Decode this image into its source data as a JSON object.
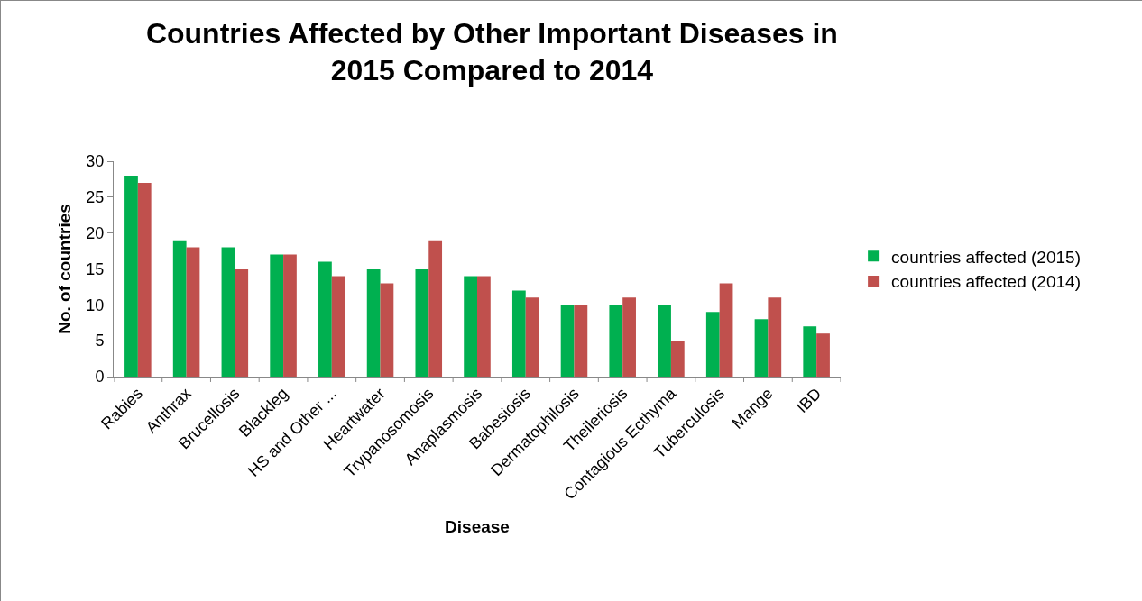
{
  "chart_data": {
    "type": "bar",
    "title": "Countries Affected by Other Important Diseases in 2015 Compared to 2014",
    "xlabel": "Disease",
    "ylabel": "No. of countries",
    "categories": [
      "Rabies",
      "Anthrax",
      "Brucellosis",
      "Blackleg",
      "HS and Other ...",
      "Heartwater",
      "Trypanosomosis",
      "Anaplasmosis",
      "Babesiosis",
      "Dermatophilosis",
      "Theileriosis",
      "Contagious Ecthyma",
      "Tuberculosis",
      "Mange",
      "IBD"
    ],
    "series": [
      {
        "name": "countries affected (2015)",
        "color": "#00b050",
        "values": [
          28,
          19,
          18,
          17,
          16,
          15,
          15,
          14,
          12,
          10,
          10,
          10,
          9,
          8,
          7
        ]
      },
      {
        "name": "countries affected (2014)",
        "color": "#c0504d",
        "values": [
          27,
          18,
          15,
          17,
          14,
          13,
          19,
          14,
          11,
          10,
          11,
          5,
          13,
          11,
          6
        ]
      }
    ],
    "ylim": [
      0,
      30
    ],
    "yticks": [
      0,
      5,
      10,
      15,
      20,
      25,
      30
    ],
    "grid": false,
    "legend": "right"
  }
}
